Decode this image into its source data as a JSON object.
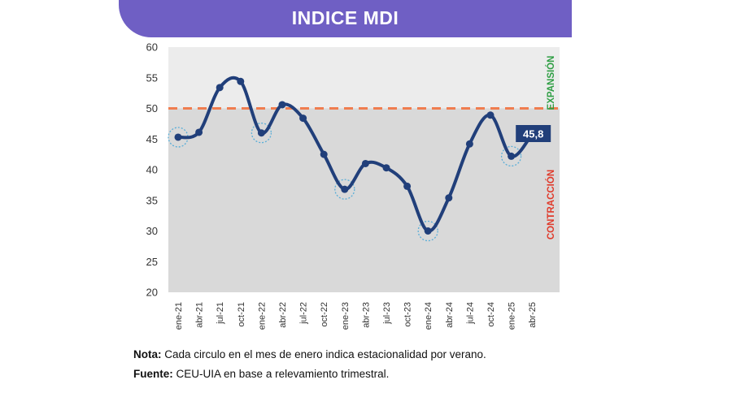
{
  "header": {
    "title": "INDICE MDI"
  },
  "colors": {
    "banner": "#6f5fc4",
    "line": "#213f7a",
    "threshold": "#f07d4f",
    "expansion": "#2f9e44",
    "contraction": "#e03a2b",
    "plot_top": "#ececec",
    "plot_bottom": "#d9d9d9"
  },
  "chart_data": {
    "type": "line",
    "title": "INDICE MDI",
    "xlabel": "",
    "ylabel": "",
    "ylim": [
      20,
      60
    ],
    "yticks": [
      20,
      25,
      30,
      35,
      40,
      45,
      50,
      55,
      60
    ],
    "categories": [
      "ene-21",
      "abr-21",
      "jul-21",
      "oct-21",
      "ene-22",
      "abr-22",
      "jul-22",
      "oct-22",
      "ene-23",
      "abr-23",
      "jul-23",
      "oct-23",
      "ene-24",
      "abr-24",
      "jul-24",
      "oct-24",
      "ene-25",
      "abr-25"
    ],
    "series": [
      {
        "values": [
          45.3,
          46.1,
          53.4,
          54.4,
          46.0,
          50.6,
          48.4,
          42.5,
          36.8,
          41.0,
          40.3,
          37.3,
          30.0,
          35.4,
          44.2,
          48.9,
          42.2,
          45.8
        ]
      }
    ],
    "threshold": 50,
    "zones": {
      "upper": "EXPANSIÓN",
      "lower": "CONTRACCIÓN"
    },
    "highlighted": [
      "ene-21",
      "ene-22",
      "ene-23",
      "ene-24",
      "ene-25"
    ],
    "last_value_label": "45,8",
    "grid": false,
    "legend": "none"
  },
  "notes": {
    "nota_label": "Nota:",
    "nota_text": "Cada circulo en el mes de enero indica estacionalidad por verano.",
    "fuente_label": "Fuente:",
    "fuente_text": "CEU-UIA en base a relevamiento trimestral."
  }
}
